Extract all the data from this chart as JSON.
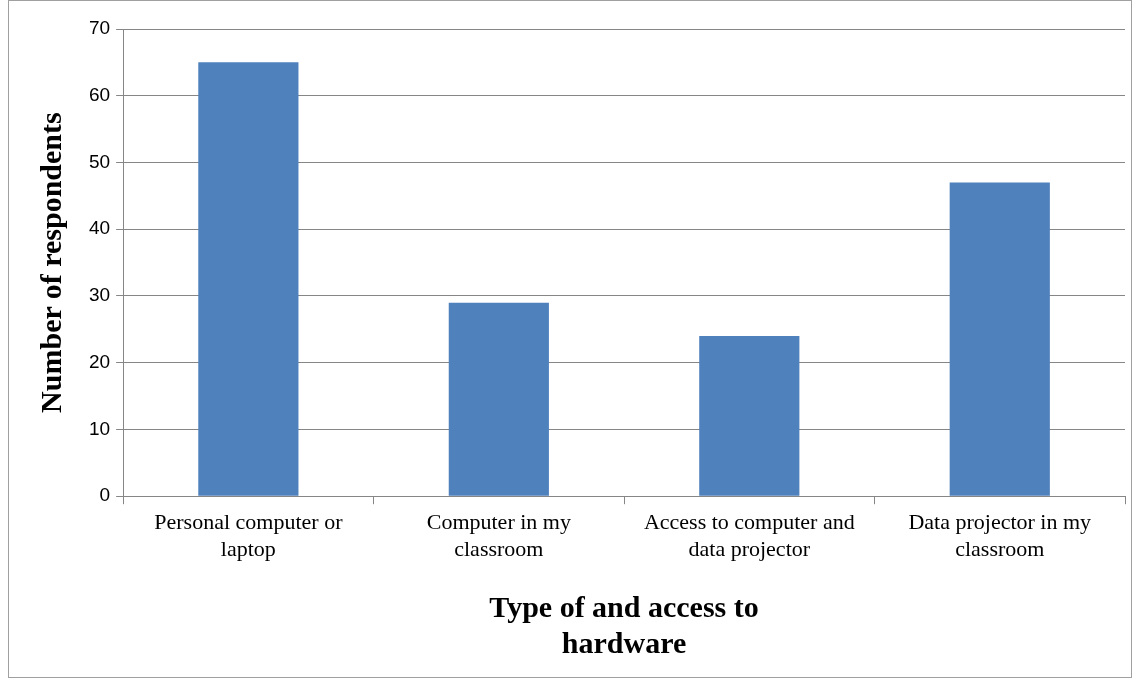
{
  "chart_data": {
    "type": "bar",
    "xlabel": "Type of and access to hardware",
    "ylabel": "Number of respondents",
    "categories": [
      "Personal computer or laptop",
      "Computer in my classroom",
      "Access to computer and data projector",
      "Data projector in my classroom"
    ],
    "values": [
      65,
      29,
      24,
      47
    ],
    "color": "#4f81bd",
    "ylim": [
      0,
      70
    ],
    "yticks": [
      0,
      10,
      20,
      30,
      40,
      50,
      60,
      70
    ],
    "grid": "y",
    "legend": false
  }
}
